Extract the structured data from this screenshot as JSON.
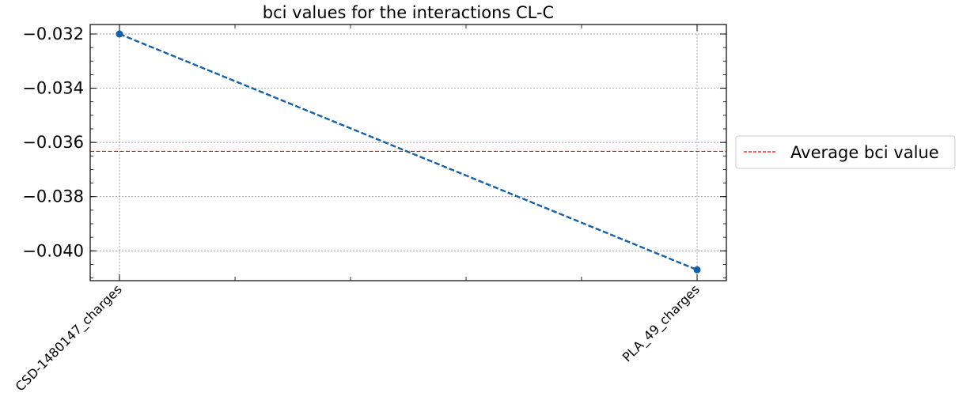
{
  "chart_data": {
    "type": "line",
    "title": "bci values for the interactions CL-C",
    "xlabel": "",
    "ylabel": "",
    "categories": [
      "CSD-1480147_charges",
      "PLA_49_charges"
    ],
    "series": [
      {
        "values": [
          -0.032,
          -0.0407
        ],
        "color": "#1660a5",
        "line_style": "dashed",
        "marker": "circle"
      }
    ],
    "reference_lines": [
      {
        "name": "Average bci value",
        "y": -0.03633,
        "color": "#ff0000",
        "line_style": "dashed"
      }
    ],
    "ylim": [
      -0.0411,
      -0.03165
    ],
    "yticks": [
      -0.032,
      -0.034,
      -0.036,
      -0.038,
      -0.04
    ],
    "ytick_labels": [
      "−0.032",
      "−0.034",
      "−0.036",
      "−0.038",
      "−0.040"
    ],
    "grid": true,
    "legend": {
      "placement": "outside-right",
      "entries": [
        "Average bci value"
      ]
    }
  }
}
